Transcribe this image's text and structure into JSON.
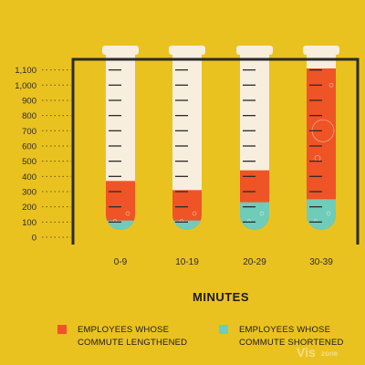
{
  "chart_data": {
    "type": "bar",
    "categories": [
      "0-9",
      "10-19",
      "20-29",
      "30-39"
    ],
    "series": [
      {
        "name": "EMPLOYEES WHOSE COMMUTE SHORTENED",
        "values": [
          110,
          110,
          230,
          250
        ]
      },
      {
        "name": "EMPLOYEES WHOSE COMMUTE LENGTHENED",
        "values": [
          370,
          310,
          440,
          1120
        ]
      }
    ],
    "ylim": [
      0,
      1100
    ],
    "yticks": [
      "0",
      "100",
      "200",
      "300",
      "400",
      "500",
      "600",
      "700",
      "800",
      "900",
      "1,000",
      "1,100"
    ],
    "xlabel": "MINUTES",
    "ylabel": "",
    "title": "",
    "legend": [
      {
        "line1": "EMPLOYEES WHOSE",
        "line2": "COMMUTE LENGTHENED",
        "color": "#EE5426"
      },
      {
        "line1": "EMPLOYEES WHOSE",
        "line2": "COMMUTE SHORTENED",
        "color": "#6FCCB8"
      }
    ],
    "colors": {
      "background": "#EAC220",
      "tube": "#F7EEDD",
      "lengthened": "#EE5426",
      "shortened": "#6FCCB8",
      "frame": "#2B2B2B"
    }
  },
  "watermark": {
    "main": "Vis",
    "sub": "zone"
  }
}
